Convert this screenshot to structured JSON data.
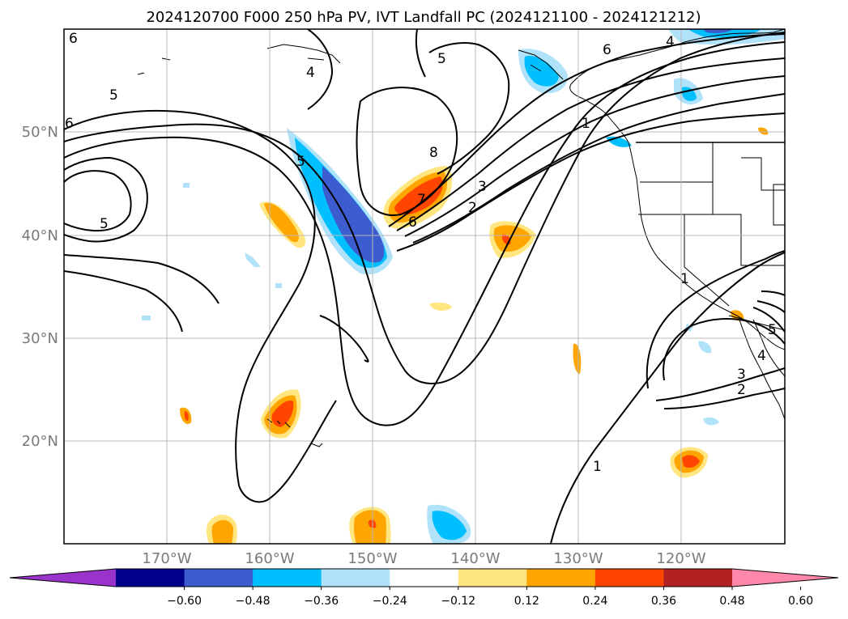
{
  "title": "2024120700 F000 250 hPa PV, IVT Landfall PC (2024121100 - 2024121212)",
  "lat_labels": [
    "50°N",
    "40°N",
    "30°N",
    "20°N"
  ],
  "lon_labels": [
    "170°W",
    "160°W",
    "150°W",
    "140°W",
    "130°W",
    "120°W"
  ],
  "contour_labels": [
    "6",
    "5",
    "5",
    "6",
    "4",
    "5",
    "8",
    "7",
    "6",
    "5",
    "3",
    "2",
    "1",
    "4",
    "6",
    "1",
    "5",
    "4",
    "3",
    "2",
    "1"
  ],
  "colorbar": {
    "ticks": [
      "−0.60",
      "−0.48",
      "−0.36",
      "−0.24",
      "−0.12",
      "0.12",
      "0.24",
      "0.36",
      "0.48",
      "0.60"
    ],
    "colors": [
      "#9933cc",
      "#00008b",
      "#3c5cd0",
      "#00bfff",
      "#b0e2fa",
      "#ffffff",
      "#ffe680",
      "#ffa500",
      "#ff4500",
      "#b22222",
      "#ff88aa"
    ]
  },
  "colors": {
    "strong_negative": "#3c5cd0",
    "mid_negative": "#00bfff",
    "weak_negative": "#b0e2fa",
    "weak_positive": "#ffe680",
    "mid_positive": "#ffa500",
    "strong_positive": "#ff4500"
  }
}
